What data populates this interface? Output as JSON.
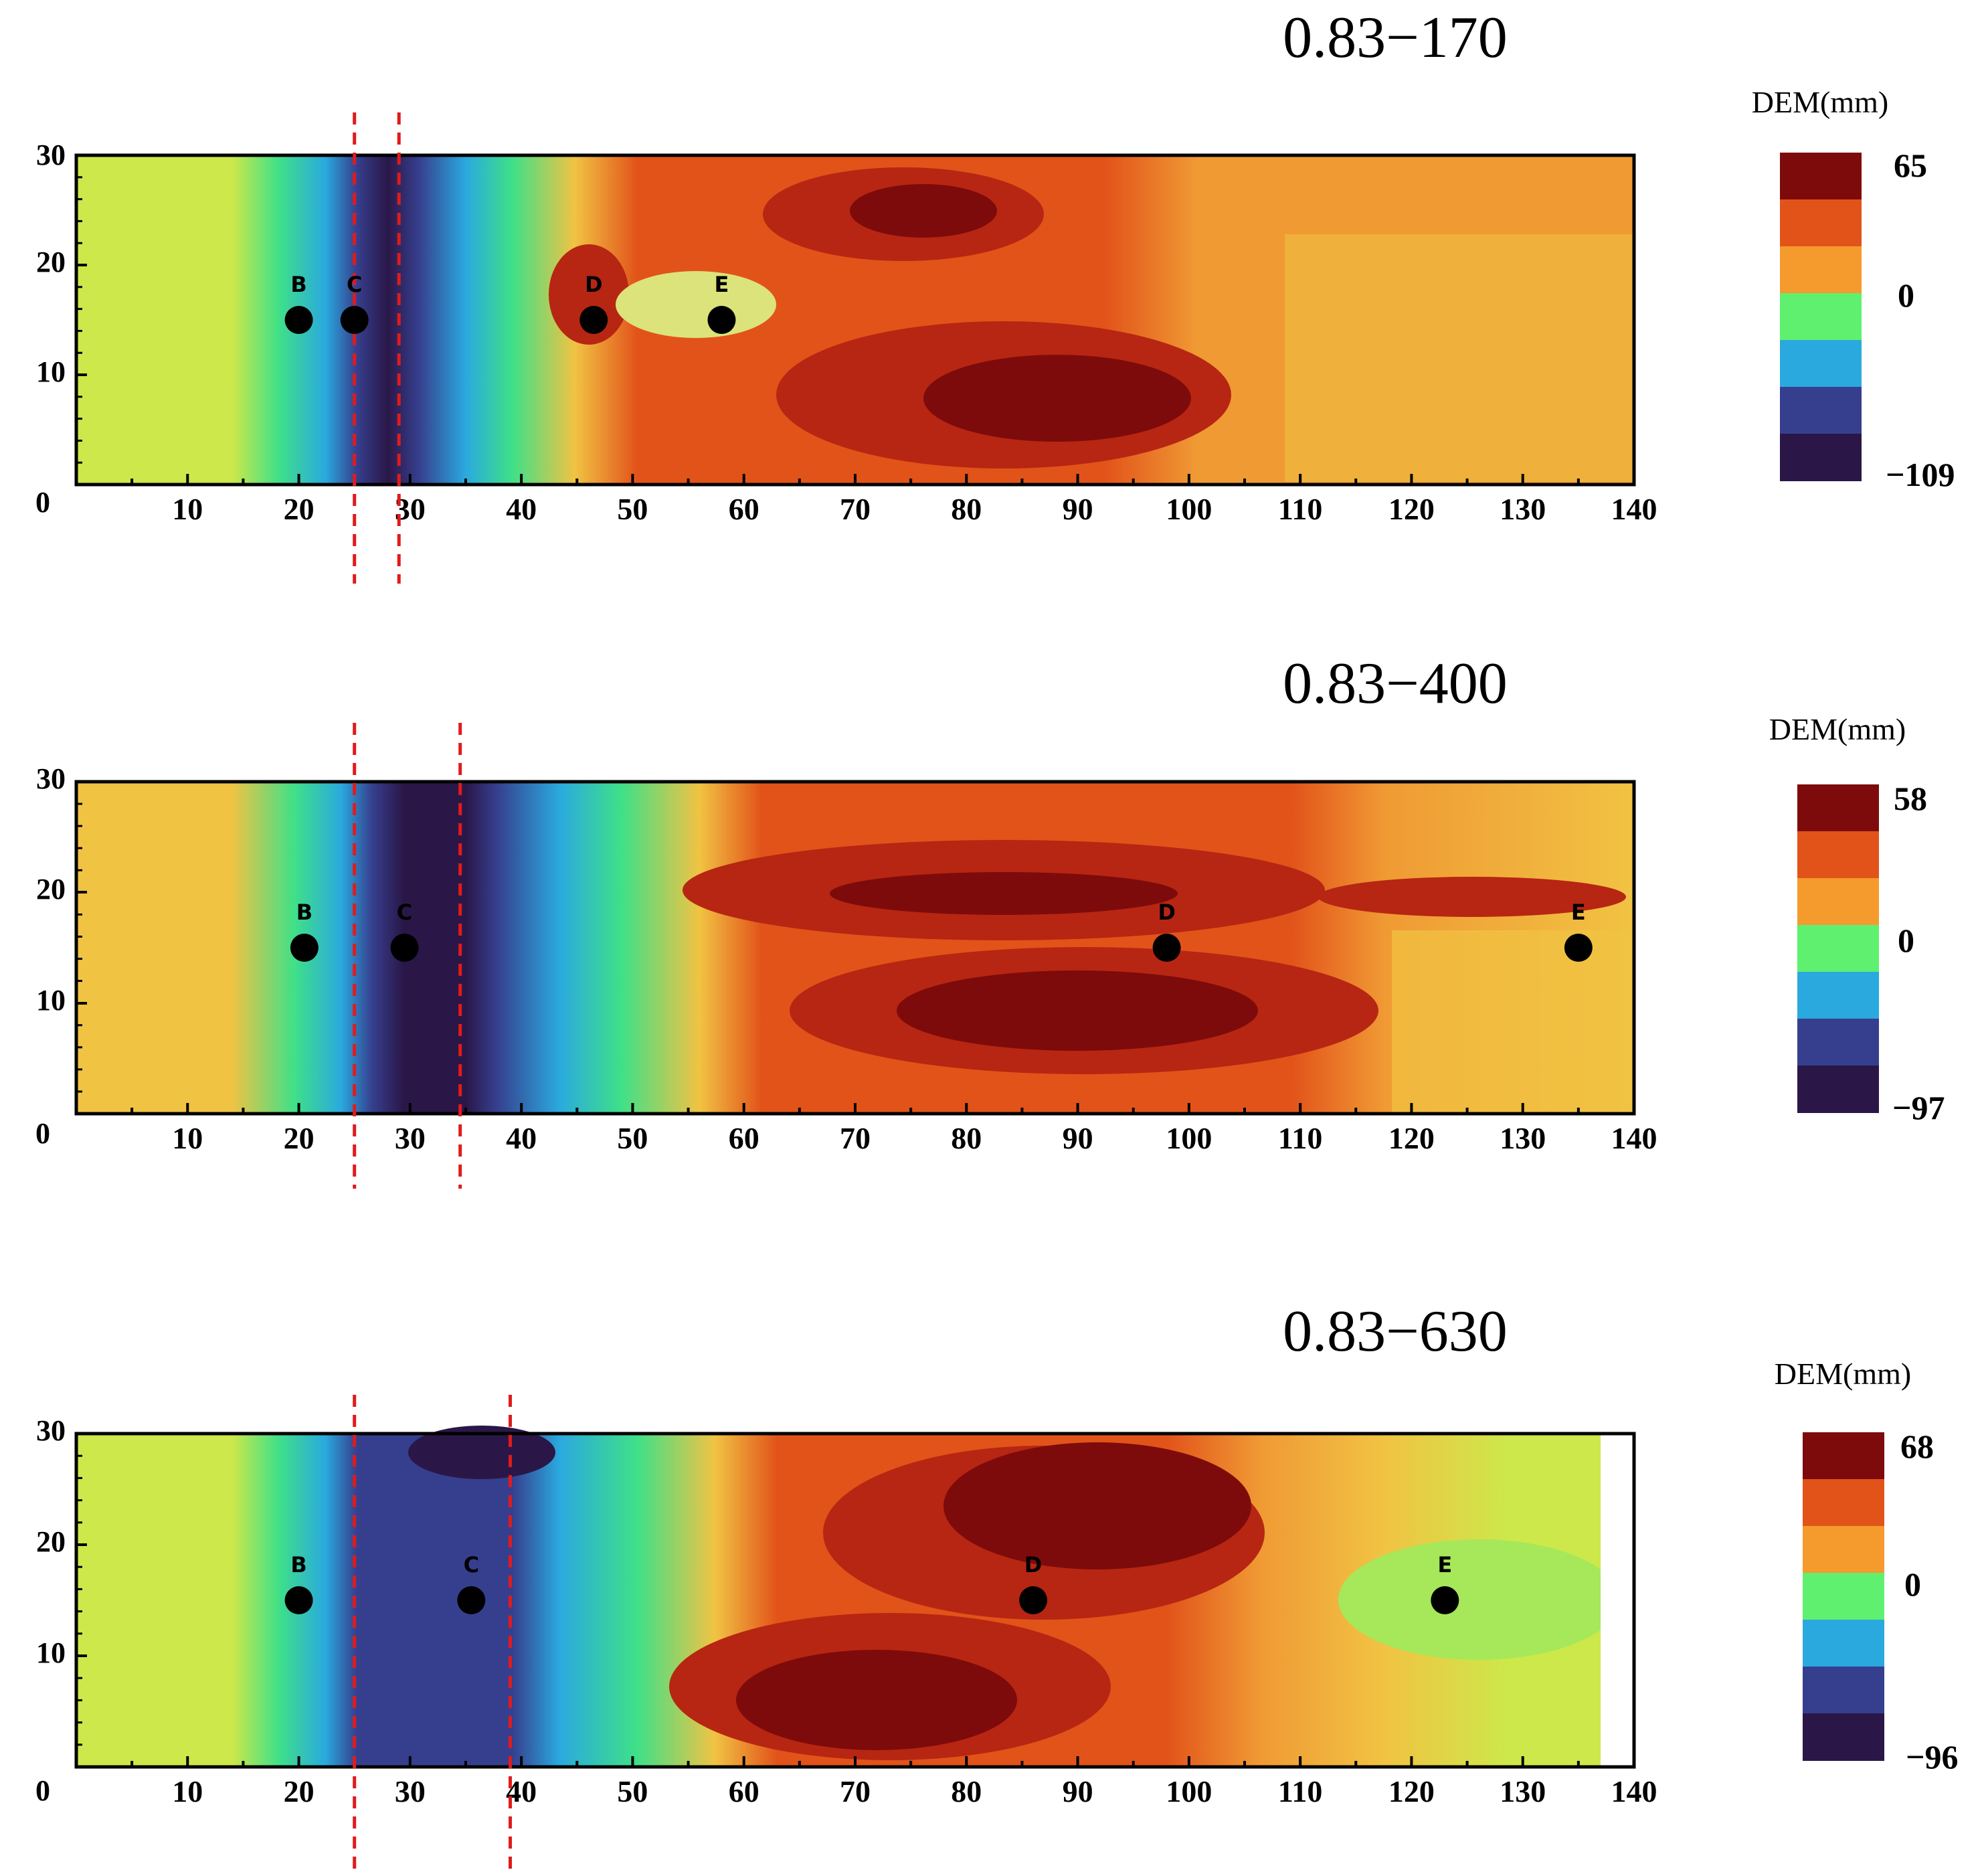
{
  "chart_data": [
    {
      "type": "heatmap",
      "title": "0.83−170",
      "xlabel": "",
      "ylabel": "",
      "xlim": [
        0,
        140
      ],
      "ylim": [
        0,
        30
      ],
      "x_ticks": [
        "10",
        "20",
        "30",
        "40",
        "50",
        "60",
        "70",
        "80",
        "90",
        "100",
        "110",
        "120",
        "130",
        "140"
      ],
      "y_ticks": [
        "30",
        "20",
        "10"
      ],
      "origin_label": "0",
      "red_dashed_lines_x": [
        25,
        29
      ],
      "points": [
        {
          "label": "B",
          "x": 20,
          "y": 15
        },
        {
          "label": "C",
          "x": 25,
          "y": 15
        },
        {
          "label": "D",
          "x": 46.5,
          "y": 15
        },
        {
          "label": "E",
          "x": 58,
          "y": 15
        }
      ],
      "colorbar": {
        "title": "DEM(mm)",
        "max_label": "65",
        "mid_label": "0",
        "min_label": "−109"
      }
    },
    {
      "type": "heatmap",
      "title": "0.83−400",
      "xlabel": "",
      "ylabel": "",
      "xlim": [
        0,
        140
      ],
      "ylim": [
        0,
        30
      ],
      "x_ticks": [
        "10",
        "20",
        "30",
        "40",
        "50",
        "60",
        "70",
        "80",
        "90",
        "100",
        "110",
        "120",
        "130",
        "140"
      ],
      "y_ticks": [
        "30",
        "20",
        "10"
      ],
      "origin_label": "0",
      "red_dashed_lines_x": [
        25,
        34.5
      ],
      "points": [
        {
          "label": "B",
          "x": 20.5,
          "y": 15
        },
        {
          "label": "C",
          "x": 29.5,
          "y": 15
        },
        {
          "label": "D",
          "x": 98,
          "y": 15
        },
        {
          "label": "E",
          "x": 135,
          "y": 15
        }
      ],
      "colorbar": {
        "title": "DEM(mm)",
        "max_label": "58",
        "mid_label": "0",
        "min_label": "−97"
      }
    },
    {
      "type": "heatmap",
      "title": "0.83−630",
      "xlabel": "",
      "ylabel": "",
      "xlim": [
        0,
        140
      ],
      "ylim": [
        0,
        30
      ],
      "x_ticks": [
        "10",
        "20",
        "30",
        "40",
        "50",
        "60",
        "70",
        "80",
        "90",
        "100",
        "110",
        "120",
        "130",
        "140"
      ],
      "y_ticks": [
        "30",
        "20",
        "10"
      ],
      "origin_label": "0",
      "red_dashed_lines_x": [
        25,
        39
      ],
      "points": [
        {
          "label": "B",
          "x": 20,
          "y": 15
        },
        {
          "label": "C",
          "x": 35.5,
          "y": 15
        },
        {
          "label": "D",
          "x": 86,
          "y": 15
        },
        {
          "label": "E",
          "x": 123,
          "y": 15
        }
      ],
      "colorbar": {
        "title": "DEM(mm)",
        "max_label": "68",
        "mid_label": "0",
        "min_label": "−96"
      }
    }
  ],
  "colors": {
    "palette": [
      "#2a1748",
      "#363f8e",
      "#2aa9df",
      "#5ff06f",
      "#f59a2c",
      "#e2531a",
      "#7e0b0b"
    ],
    "field_light": "#cde84a",
    "field_yellow": "#f1c343",
    "field_orange": "#f09a34",
    "red_line": "#e01b1b"
  }
}
